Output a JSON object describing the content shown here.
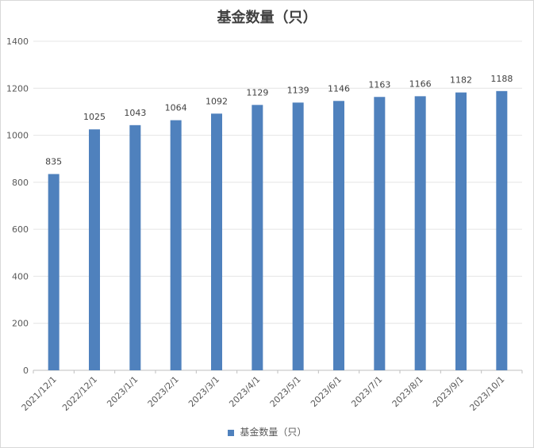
{
  "chart_data": {
    "type": "bar",
    "title": "基金数量（只）",
    "categories": [
      "2021/12/1",
      "2022/12/1",
      "2023/1/1",
      "2023/2/1",
      "2023/3/1",
      "2023/4/1",
      "2023/5/1",
      "2023/6/1",
      "2023/7/1",
      "2023/8/1",
      "2023/9/1",
      "2023/10/1"
    ],
    "series": [
      {
        "name": "基金数量（只）",
        "values": [
          835,
          1025,
          1043,
          1064,
          1092,
          1129,
          1139,
          1146,
          1163,
          1166,
          1182,
          1188
        ]
      }
    ],
    "ylim": [
      0,
      1400
    ],
    "yticks": [
      0,
      200,
      400,
      600,
      800,
      1000,
      1200,
      1400
    ],
    "grid": true,
    "legend_position": "bottom",
    "color": "#4f81bd"
  }
}
